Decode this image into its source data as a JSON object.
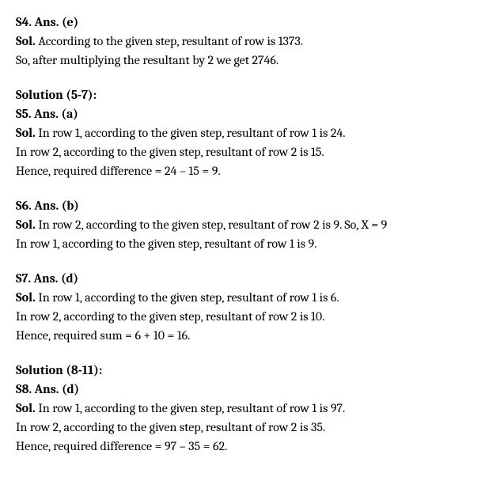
{
  "s4": {
    "heading": "S4. Ans. (e)",
    "sol_label": "Sol.",
    "line1_rest": " According to the given step, resultant of row is 1373.",
    "line2": "So, after multiplying the resultant by 2 we get 2746."
  },
  "sol57_heading": "Solution (5-7):",
  "s5": {
    "heading": "S5. Ans. (a)",
    "sol_label": "Sol.",
    "line1_rest": " In row 1, according to the given step, resultant of row 1 is 24.",
    "line2": "In row 2, according to the given step, resultant of row 2 is 15.",
    "line3": "Hence, required difference = 24 – 15 = 9."
  },
  "s6": {
    "heading": "S6. Ans. (b)",
    "sol_label": "Sol.",
    "line1_rest": " In row 2, according to the given step, resultant of row 2 is 9. So, X = 9",
    "line2": "In row 1, according to the given step, resultant of row 1 is 9."
  },
  "s7": {
    "heading": "S7. Ans. (d)",
    "sol_label": "Sol.",
    "line1_rest": " In row 1, according to the given step, resultant of row 1 is 6.",
    "line2": "In row 2, according to the given step, resultant of row 2 is 10.",
    "line3": "Hence, required sum = 6 + 10 = 16."
  },
  "sol811_heading": "Solution (8-11):",
  "s8": {
    "heading": "S8. Ans. (d)",
    "sol_label": "Sol.",
    "line1_rest": " In row 1, according to the given step, resultant of row 1 is 97.",
    "line2": "In row 2, according to the given step, resultant of row 2 is 35.",
    "line3": "Hence, required difference = 97 – 35 = 62."
  }
}
